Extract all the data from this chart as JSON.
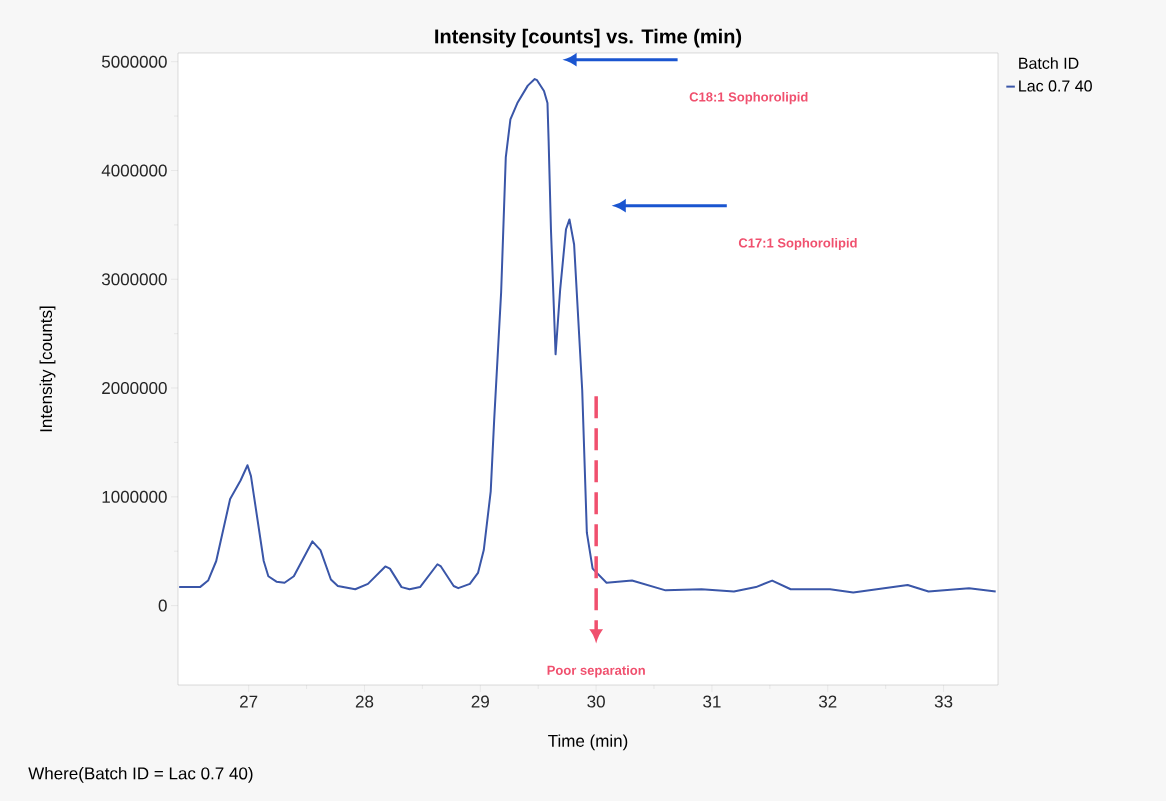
{
  "chart_data": {
    "type": "line",
    "title": "Intensity [counts] vs. Time (min)",
    "xlabel": "Time (min)",
    "ylabel": "Intensity [counts]",
    "legend_title": "Batch ID",
    "legend": "top right",
    "xlim": [
      26.39,
      33.47
    ],
    "ylim": [
      -730000,
      5080000
    ],
    "xticks": [
      27,
      28,
      29,
      30,
      31,
      32,
      33
    ],
    "yticks": [
      0,
      1000000,
      2000000,
      3000000,
      4000000,
      5000000
    ],
    "series": [
      {
        "name": "Lac 0.7 40",
        "color": "#3a56a8",
        "x": [
          26.4,
          26.58,
          26.65,
          26.72,
          26.84,
          26.93,
          26.99,
          27.02,
          27.13,
          27.17,
          27.24,
          27.31,
          27.39,
          27.55,
          27.62,
          27.71,
          27.77,
          27.92,
          28.03,
          28.18,
          28.22,
          28.32,
          28.39,
          28.48,
          28.63,
          28.66,
          28.77,
          28.81,
          28.91,
          28.98,
          29.03,
          29.09,
          29.12,
          29.18,
          29.22,
          29.26,
          29.32,
          29.41,
          29.47,
          29.49,
          29.55,
          29.58,
          29.59,
          29.61,
          29.65,
          29.69,
          29.74,
          29.77,
          29.81,
          29.88,
          29.92,
          29.97,
          30.09,
          30.31,
          30.6,
          30.91,
          31.19,
          31.38,
          31.52,
          31.68,
          32.02,
          32.22,
          32.69,
          32.87,
          33.22,
          33.45
        ],
        "values": [
          170000,
          170000,
          230000,
          410000,
          980000,
          1150000,
          1290000,
          1190000,
          410000,
          270000,
          220000,
          210000,
          270000,
          590000,
          510000,
          240000,
          180000,
          150000,
          200000,
          360000,
          340000,
          170000,
          150000,
          170000,
          380000,
          360000,
          180000,
          160000,
          200000,
          300000,
          510000,
          1050000,
          1710000,
          2880000,
          4120000,
          4470000,
          4620000,
          4780000,
          4840000,
          4830000,
          4730000,
          4620000,
          4270000,
          3460000,
          2310000,
          2910000,
          3460000,
          3550000,
          3320000,
          1980000,
          670000,
          340000,
          210000,
          230000,
          140000,
          150000,
          130000,
          170000,
          230000,
          150000,
          150000,
          120000,
          190000,
          130000,
          160000,
          130000
        ]
      }
    ],
    "annotations": [
      "C18:1 Sophorolipid",
      "C17:1 Sophorolipid",
      "Poor separation",
      "Where(Batch ID = Lac 0.7 40)"
    ]
  }
}
